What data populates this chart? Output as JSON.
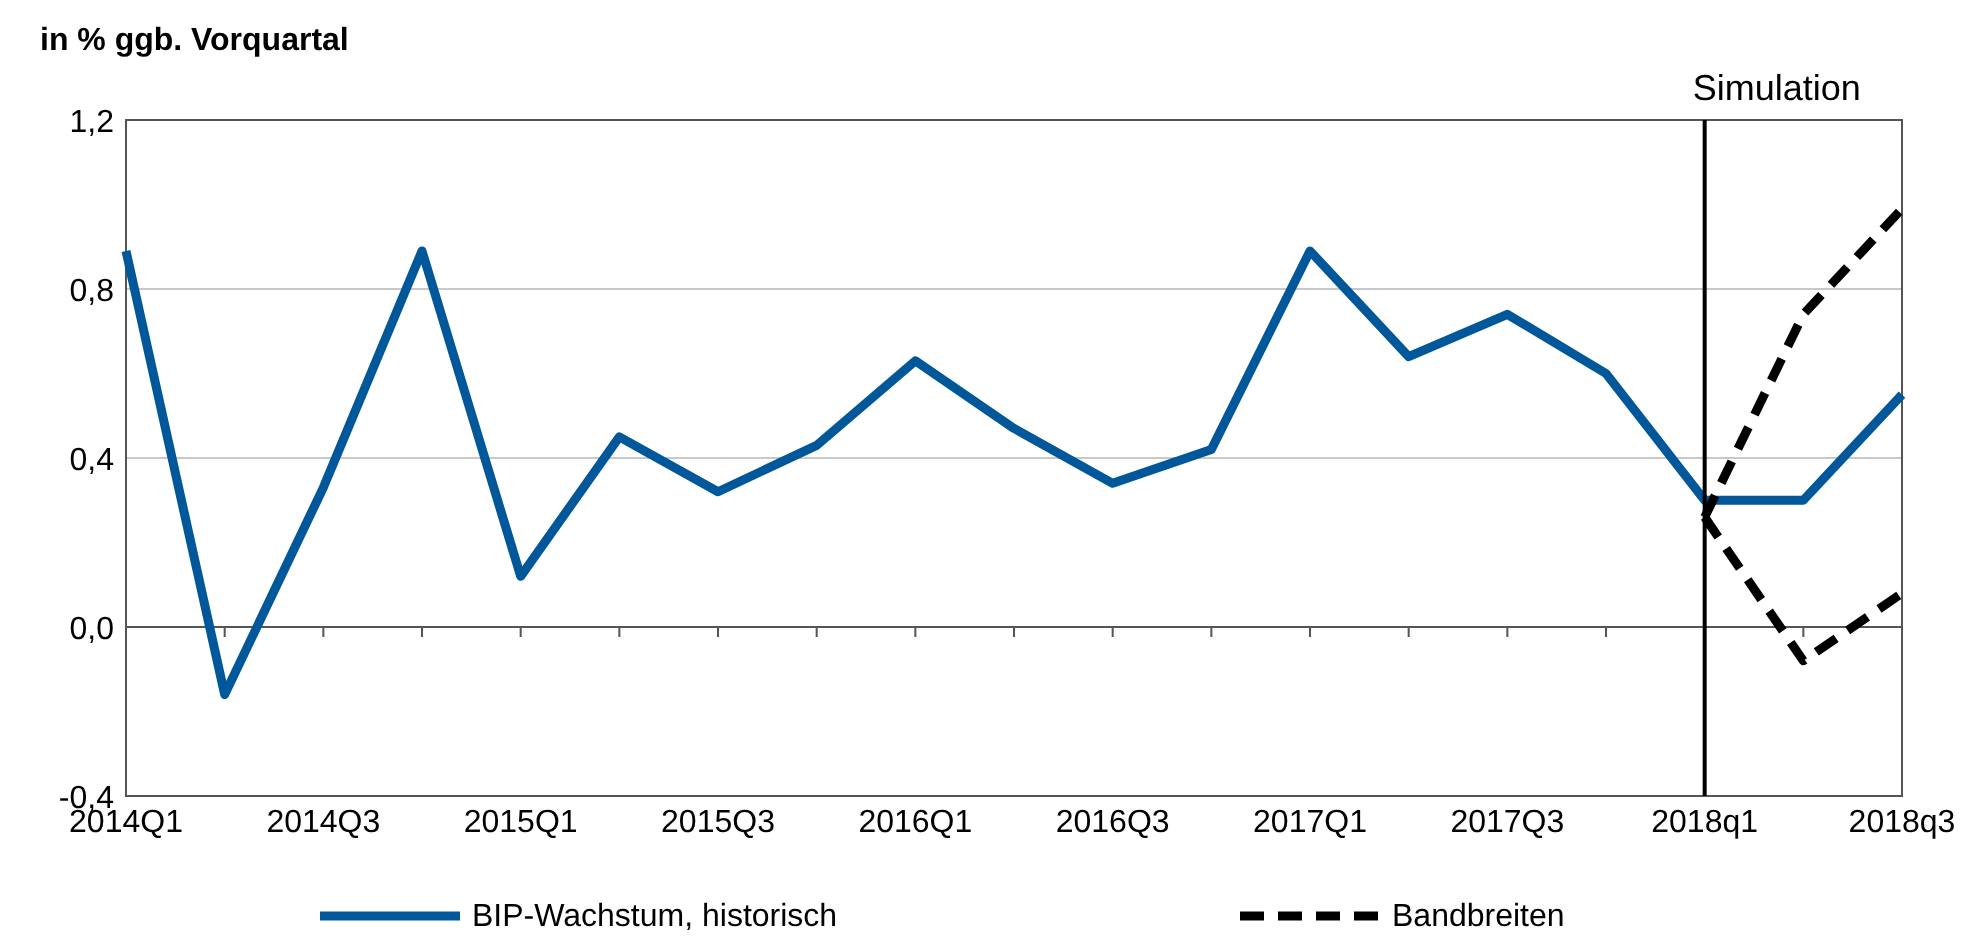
{
  "chart_data": {
    "type": "line",
    "ylabel": "in % ggb. Vorquartal",
    "categories": [
      "2014Q1",
      null,
      "2014Q3",
      null,
      "2015Q1",
      null,
      "2015Q3",
      null,
      "2016Q1",
      null,
      "2016Q3",
      null,
      "2017Q1",
      null,
      "2017Q3",
      null,
      "2018q1",
      null,
      "2018q3"
    ],
    "series": [
      {
        "name": "BIP-Wachstum, historisch",
        "color": "#00589a",
        "line_style": "solid",
        "values": [
          0.89,
          -0.16,
          0.33,
          0.89,
          0.12,
          0.45,
          0.32,
          0.43,
          0.63,
          0.47,
          0.34,
          0.42,
          0.89,
          0.64,
          0.74,
          0.6,
          0.3,
          0.3,
          0.55
        ]
      },
      {
        "name": "Bandbreiten",
        "color": "#000000",
        "line_style": "dashed",
        "values": [
          null,
          null,
          null,
          null,
          null,
          null,
          null,
          null,
          null,
          null,
          null,
          null,
          null,
          null,
          null,
          null,
          0.26,
          0.74,
          0.99
        ]
      },
      {
        "color": "#000000",
        "line_style": "dashed",
        "values": [
          null,
          null,
          null,
          null,
          null,
          null,
          null,
          null,
          null,
          null,
          null,
          null,
          null,
          null,
          null,
          null,
          0.26,
          -0.08,
          0.08
        ]
      }
    ],
    "ylim": [
      -0.4,
      1.2
    ],
    "yticks": [
      {
        "value": -0.4,
        "label": "-0,4"
      },
      {
        "value": 0,
        "label": "0,0"
      },
      {
        "value": 0.4,
        "label": "0,4"
      },
      {
        "value": 0.8,
        "label": "0,8"
      },
      {
        "value": 1.2,
        "label": "1,2"
      }
    ],
    "grid": "y",
    "legend": "bottom",
    "marker": "none",
    "ref_lines": [
      {
        "axis": "x",
        "value": "2018q1",
        "label": "Simulation",
        "color": "#000000"
      }
    ]
  }
}
